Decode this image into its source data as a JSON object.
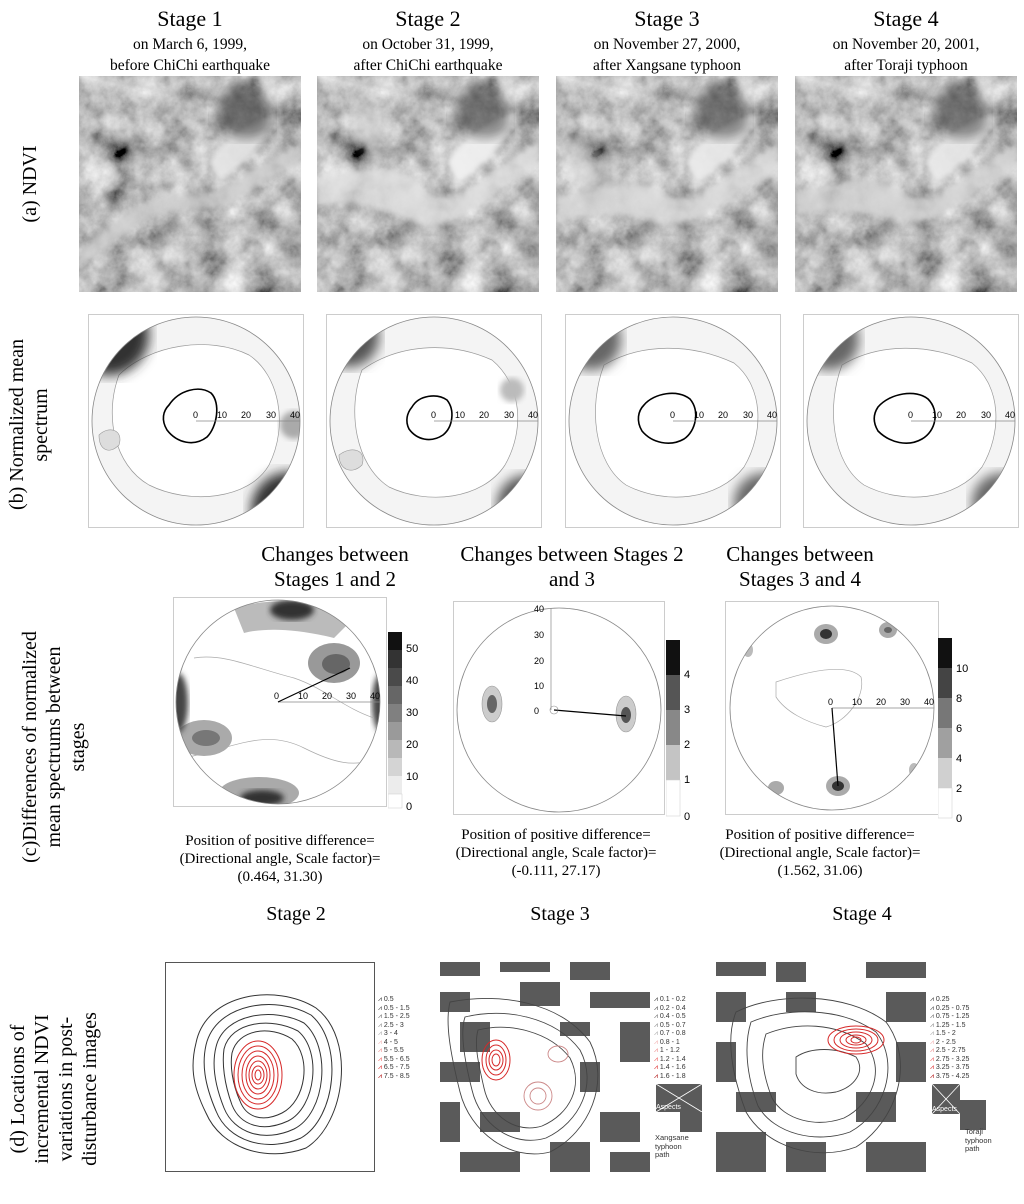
{
  "stages": [
    {
      "title": "Stage 1",
      "line1": "on March 6, 1999,",
      "line2": "before ChiChi earthquake"
    },
    {
      "title": "Stage 2",
      "line1": "on October 31, 1999,",
      "line2": "after ChiChi earthquake"
    },
    {
      "title": "Stage 3",
      "line1": "on November 27, 2000,",
      "line2": "after Xangsane typhoon"
    },
    {
      "title": "Stage 4",
      "line1": "on November 20, 2001,",
      "line2": "after Toraji typhoon"
    }
  ],
  "row_labels": {
    "a": "(a)  NDVI",
    "b_line1": "(b) Normalized mean",
    "b_line2": "spectrum",
    "c_line1": "(c)Differences of normalized",
    "c_line2": "mean spectrums between",
    "c_line3": "stages",
    "d_line1": "(d) Locations of",
    "d_line2": "incremental NDVI",
    "d_line3": "variations in post-",
    "d_line4": "disturbance images"
  },
  "spectrum_axis_ticks": [
    "0",
    "10",
    "20",
    "30",
    "40"
  ],
  "changes": [
    {
      "title_line1": "Changes between",
      "title_line2": "Stages 1 and 2",
      "pos_line1": "Position of positive difference=",
      "pos_line2": "(Directional angle, Scale factor)=",
      "pos_line3": "(0.464, 31.30)",
      "colorbar_ticks": [
        "50",
        "40",
        "30",
        "20",
        "10",
        "0"
      ]
    },
    {
      "title_line1": "Changes between Stages 2",
      "title_line2": "and 3",
      "pos_line1": "Position of positive difference=",
      "pos_line2": "(Directional angle, Scale factor)=",
      "pos_line3": "(-0.111, 27.17)",
      "colorbar_ticks": [
        "4",
        "3",
        "2",
        "1",
        "0"
      ]
    },
    {
      "title_line1": "Changes between",
      "title_line2": "Stages 3 and 4",
      "pos_line1": "Position of positive difference=",
      "pos_line2": "(Directional angle, Scale factor)=",
      "pos_line3": "(1.562, 31.06)",
      "colorbar_ticks": [
        "10",
        "8",
        "6",
        "4",
        "2",
        "0"
      ]
    }
  ],
  "locations": [
    {
      "title": "Stage 2",
      "legend": [
        "0.5",
        "0.5 - 1.5",
        "1.5 - 2.5",
        "2.5 - 3",
        "3 - 4",
        "4 - 5",
        "5 - 5.5",
        "5.5 - 6.5",
        "6.5 - 7.5",
        "7.5 - 8.5"
      ]
    },
    {
      "title": "Stage 3",
      "legend": [
        "0.1 - 0.2",
        "0.2 - 0.4",
        "0.4 - 0.5",
        "0.5 - 0.7",
        "0.7 - 0.8",
        "0.8 - 1",
        "1 - 1.2",
        "1.2 - 1.4",
        "1.4 - 1.6",
        "1.6 - 1.8"
      ],
      "aspects_label": "Aspects",
      "path_line1": "Xangsane",
      "path_line2": "typhoon",
      "path_line3": "path"
    },
    {
      "title": "Stage 4",
      "legend": [
        "0.25",
        "0.25 - 0.75",
        "0.75 - 1.25",
        "1.25 - 1.5",
        "1.5 - 2",
        "2 - 2.5",
        "2.5 - 2.75",
        "2.75 - 3.25",
        "3.25 - 3.75",
        "3.75 - 4.25"
      ],
      "aspects_label": "Aspects",
      "path_line1": "Toraji",
      "path_line2": "typhoon",
      "path_line3": "path"
    }
  ],
  "colors": {
    "grid_gray": "#5a5a5a",
    "contour_red": "#d62828",
    "contour_dark": "#333333"
  }
}
